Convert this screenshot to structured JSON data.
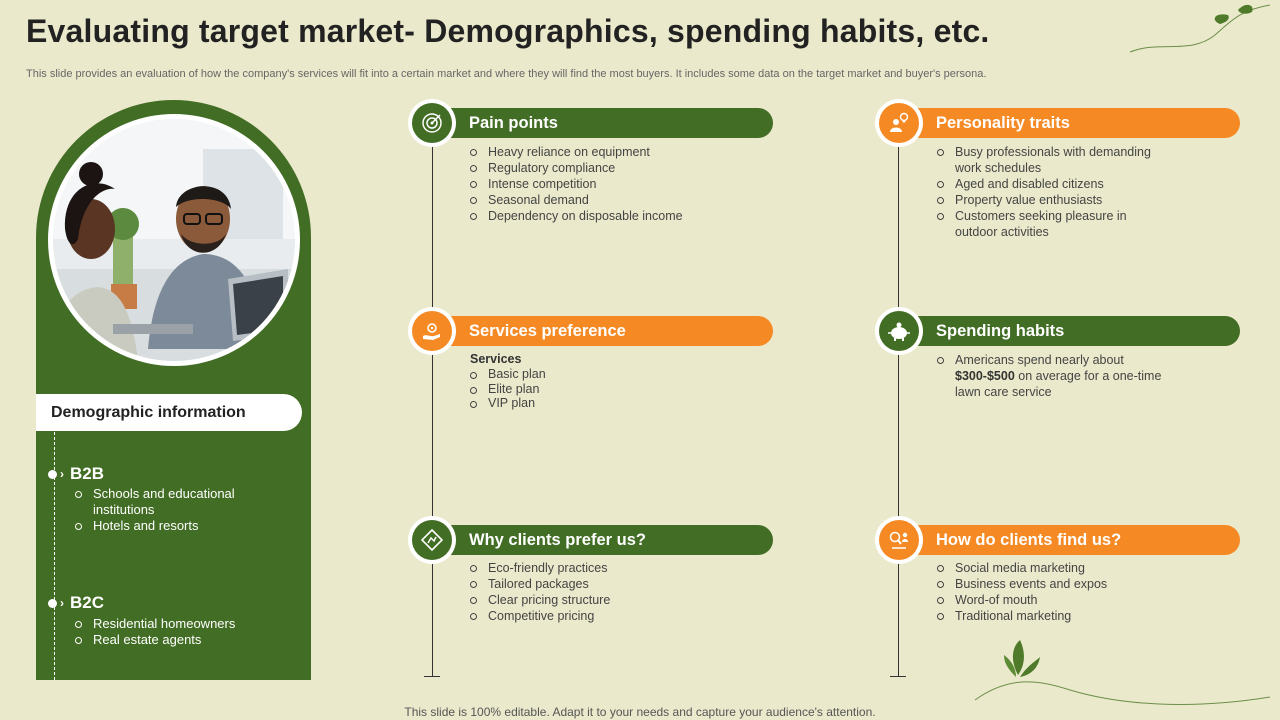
{
  "title": "Evaluating target market- Demographics, spending habits, etc.",
  "subtitle": "This slide provides an evaluation of how the company's services will fit into a certain market and where they will find the most buyers. It includes some data on the target market and buyer's persona.",
  "footer": "This slide is 100% editable. Adapt it to your needs and capture your audience's attention.",
  "demographic": {
    "heading": "Demographic information",
    "b2b": {
      "label": "B2B",
      "items": [
        "Schools and educational institutions",
        "Hotels and resorts"
      ]
    },
    "b2c": {
      "label": "B2C",
      "items": [
        "Residential homeowners",
        "Real estate agents"
      ]
    }
  },
  "sections": {
    "pain_points": {
      "title": "Pain points",
      "icon": "target-icon",
      "items": [
        "Heavy reliance on equipment",
        "Regulatory compliance",
        "Intense competition",
        "Seasonal demand",
        "Dependency on disposable income"
      ]
    },
    "services_preference": {
      "title": "Services preference",
      "icon": "hand-gear-icon",
      "sublabel": "Services",
      "items": [
        "Basic plan",
        "Elite plan",
        "VIP plan"
      ]
    },
    "why_clients": {
      "title": "Why clients prefer us?",
      "icon": "diamond-sign-icon",
      "items": [
        "Eco-friendly practices",
        "Tailored packages",
        "Clear pricing structure",
        "Competitive pricing"
      ]
    },
    "personality": {
      "title": "Personality traits",
      "icon": "person-idea-icon",
      "items": [
        "Busy professionals with demanding work schedules",
        "Aged and disabled citizens",
        "Property value enthusiasts",
        "Customers seeking pleasure in outdoor activities"
      ]
    },
    "spending": {
      "title": "Spending habits",
      "icon": "piggy-bank-icon",
      "text_before": "Americans spend nearly about ",
      "amount": "$300-$500",
      "text_after": " on average for a one-time lawn care service"
    },
    "find_us": {
      "title": "How do clients find us?",
      "icon": "search-person-icon",
      "items": [
        "Social media marketing",
        "Business events and expos",
        "Word-of mouth",
        "Traditional marketing"
      ]
    }
  },
  "colors": {
    "green": "#426d24",
    "orange": "#f58a25",
    "background": "#ebe9cb"
  }
}
